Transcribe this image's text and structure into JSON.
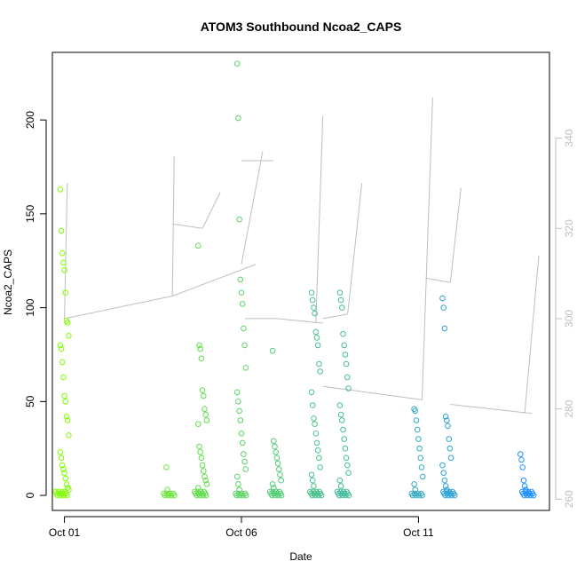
{
  "chart_data": {
    "type": "scatter",
    "title": "ATOM3 Southbound Ncoa2_CAPS",
    "xlabel": "Date",
    "ylabel": "Ncoa2_CAPS",
    "x_ticks": [
      "Oct 01",
      "Oct 06",
      "Oct 11"
    ],
    "y_ticks": [
      "0",
      "50",
      "100",
      "150",
      "200"
    ],
    "y_right_ticks": [
      "260",
      "280",
      "300",
      "320",
      "340"
    ],
    "xlim": [
      -0.34,
      13.7
    ],
    "ylim": [
      -8,
      236
    ],
    "ylim_right": [
      257.5,
      359
    ],
    "grid": false,
    "legend": "none",
    "point_color_low": "#7fff00",
    "point_color_high": "#1e90ff",
    "line_color": "#bfbfbf",
    "series": [
      {
        "type": "points",
        "days": [
          {
            "x": 0.0,
            "values": [
              163,
              141,
              129,
              124,
              120,
              108,
              93,
              92,
              85,
              80,
              78,
              71,
              63,
              53,
              50,
              42,
              40,
              32,
              23,
              20,
              16,
              14,
              12,
              9,
              6,
              4,
              3,
              2,
              1,
              0
            ]
          },
          {
            "x": 3.0,
            "values": [
              15,
              3,
              1,
              0
            ]
          },
          {
            "x": 3.9,
            "values": [
              133,
              80,
              78,
              73,
              56,
              53,
              46,
              43,
              40,
              38,
              26,
              23,
              20,
              16,
              13,
              10,
              8,
              6,
              4,
              2,
              1,
              0
            ]
          },
          {
            "x": 5.0,
            "values": [
              230,
              201,
              147,
              115,
              108,
              102,
              89,
              80,
              68,
              55,
              50,
              45,
              40,
              33,
              28,
              22,
              18,
              14,
              10,
              6,
              3,
              1,
              0
            ]
          },
          {
            "x": 6.0,
            "values": [
              77,
              29,
              26,
              23,
              20,
              17,
              14,
              11,
              8,
              6,
              4,
              2,
              1,
              0
            ]
          },
          {
            "x": 7.1,
            "values": [
              108,
              104,
              100,
              97,
              87,
              84,
              80,
              70,
              66,
              55,
              48,
              41,
              38,
              33,
              28,
              24,
              20,
              15,
              11,
              8,
              5,
              2,
              1,
              0
            ]
          },
          {
            "x": 7.9,
            "values": [
              108,
              104,
              100,
              86,
              80,
              75,
              70,
              63,
              57,
              48,
              43,
              40,
              35,
              30,
              25,
              20,
              16,
              12,
              8,
              5,
              2,
              1,
              0
            ]
          },
          {
            "x": 10.0,
            "values": [
              46,
              45,
              40,
              35,
              30,
              25,
              20,
              15,
              10,
              6,
              3,
              1,
              0
            ]
          },
          {
            "x": 10.8,
            "values": [
              105,
              100,
              89,
              42,
              40,
              37,
              30,
              25,
              20,
              16,
              12,
              8,
              5,
              3,
              2,
              1,
              0
            ]
          },
          {
            "x": 13.0,
            "values": [
              22,
              19,
              15,
              8,
              5,
              3,
              2,
              1,
              0
            ]
          }
        ]
      },
      {
        "type": "line",
        "segments": [
          {
            "x": [
              0.0,
              0.08
            ],
            "y": [
              300,
              330
            ]
          },
          {
            "x": [
              0.0,
              3.05
            ],
            "y": [
              300,
              305
            ]
          },
          {
            "x": [
              3.05,
              3.1
            ],
            "y": [
              305,
              336
            ]
          },
          {
            "x": [
              3.05,
              3.9
            ],
            "y": [
              321,
              320
            ]
          },
          {
            "x": [
              3.9,
              4.4
            ],
            "y": [
              320,
              328
            ]
          },
          {
            "x": [
              3.05,
              5.4
            ],
            "y": [
              305,
              312
            ]
          },
          {
            "x": [
              5.0,
              5.6
            ],
            "y": [
              312,
              337
            ]
          },
          {
            "x": [
              5.0,
              5.9
            ],
            "y": [
              335,
              335
            ]
          },
          {
            "x": [
              5.1,
              6.0
            ],
            "y": [
              300,
              300
            ]
          },
          {
            "x": [
              6.0,
              7.3
            ],
            "y": [
              300,
              299
            ]
          },
          {
            "x": [
              7.1,
              7.3
            ],
            "y": [
              299,
              345
            ]
          },
          {
            "x": [
              7.3,
              8.0
            ],
            "y": [
              300,
              301
            ]
          },
          {
            "x": [
              8.0,
              8.4
            ],
            "y": [
              301,
              330
            ]
          },
          {
            "x": [
              7.3,
              10.1
            ],
            "y": [
              285,
              282
            ]
          },
          {
            "x": [
              10.1,
              10.4
            ],
            "y": [
              282,
              349
            ]
          },
          {
            "x": [
              10.2,
              10.9
            ],
            "y": [
              309,
              308
            ]
          },
          {
            "x": [
              10.9,
              11.2
            ],
            "y": [
              308,
              329
            ]
          },
          {
            "x": [
              10.9,
              13.2
            ],
            "y": [
              281,
              279
            ]
          },
          {
            "x": [
              13.0,
              13.4
            ],
            "y": [
              279,
              314
            ]
          }
        ]
      }
    ]
  }
}
